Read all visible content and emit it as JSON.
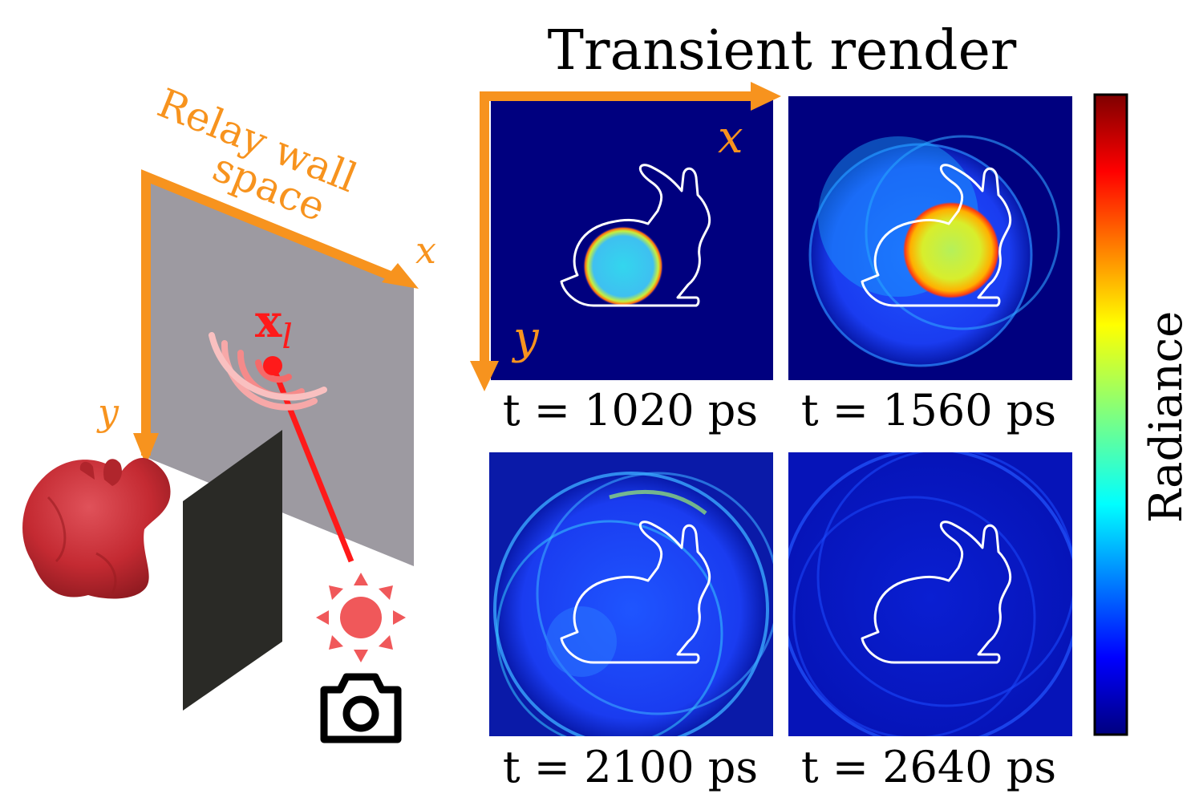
{
  "title": "Transient render",
  "scene": {
    "relay_wall_label_line1": "Relay wall",
    "relay_wall_label_line2": "space",
    "axis_x": "x",
    "axis_y": "y",
    "light_point_label": "x",
    "light_point_subscript": "l"
  },
  "render": {
    "axis_x": "x",
    "axis_y": "y",
    "panels": [
      {
        "label": "t = 1020 ps"
      },
      {
        "label": "t = 1560 ps"
      },
      {
        "label": "t = 2100 ps"
      },
      {
        "label": "t = 2640 ps"
      }
    ]
  },
  "colorbar": {
    "label": "Radiance",
    "colormap": "jet"
  },
  "colors": {
    "axis_orange": "#f7931e",
    "laser_red": "#ff1a1a",
    "wall_gray": "#9d9aa1",
    "occluder_black": "#2a2a26",
    "bunny_red": "#c42a32",
    "panel_background": "#00007f"
  },
  "icons": [
    "sun-icon",
    "camera-icon",
    "bunny-icon"
  ]
}
